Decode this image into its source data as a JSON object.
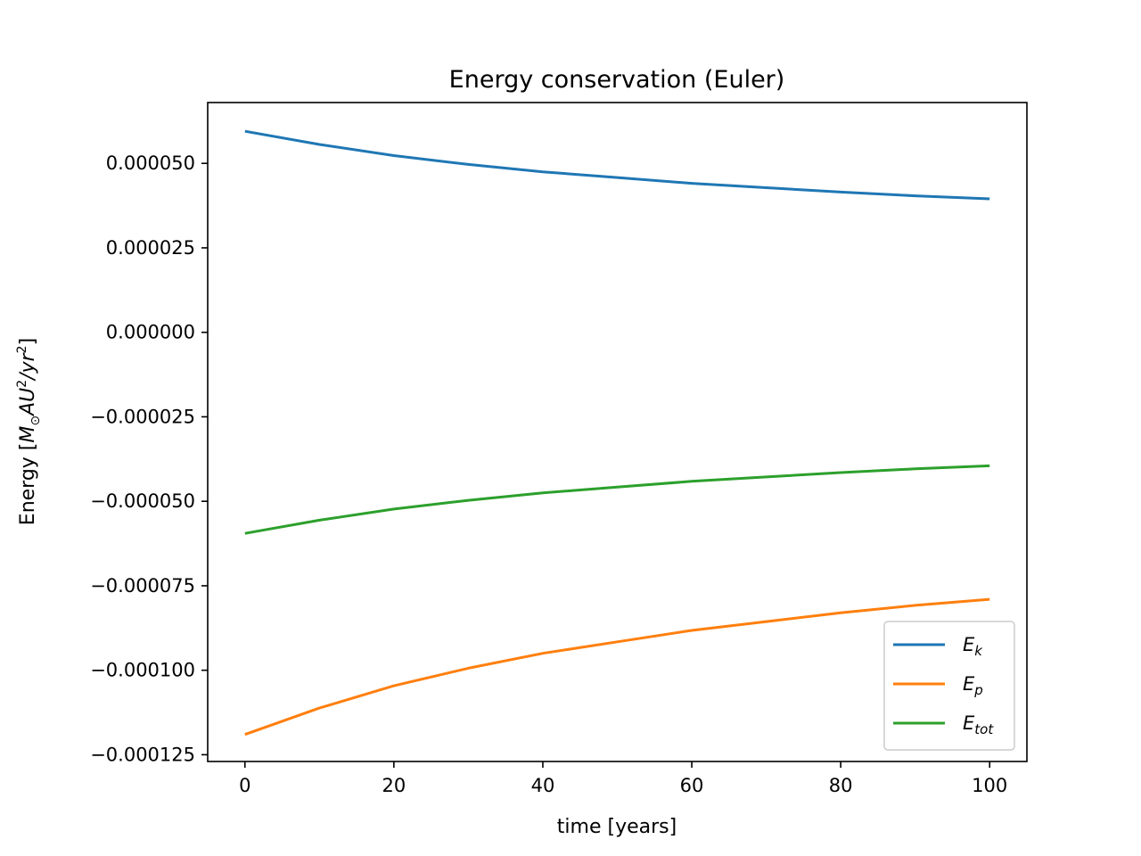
{
  "chart_data": {
    "type": "line",
    "title": "Energy conservation (Euler)",
    "xlabel": "time [years]",
    "ylabel": {
      "prefix": "Energy [",
      "M": "M",
      "sun_symbol": "⊙",
      "AU": "AU",
      "exp1": "2",
      "slash": "/",
      "yr": "yr",
      "exp2": "2",
      "suffix": "]"
    },
    "xlim": [
      -5,
      105
    ],
    "ylim": [
      -0.000127,
      6.8e-05
    ],
    "xticks": [
      0,
      20,
      40,
      60,
      80,
      100
    ],
    "xtick_labels": [
      "0",
      "20",
      "40",
      "60",
      "80",
      "100"
    ],
    "yticks": [
      5e-05,
      2.5e-05,
      0,
      -2.5e-05,
      -5e-05,
      -7.5e-05,
      -0.0001,
      -0.000125
    ],
    "ytick_labels": [
      "0.000050",
      "0.000025",
      "0.000000",
      "−0.000025",
      "−0.000050",
      "−0.000075",
      "−0.000100",
      "−0.000125"
    ],
    "grid": false,
    "legend_position": "lower-right",
    "series": [
      {
        "name": "E_k",
        "legend_main": "E",
        "legend_sub": "k",
        "color": "#1f77b4",
        "x": [
          0,
          10,
          20,
          30,
          40,
          50,
          60,
          70,
          80,
          90,
          100
        ],
        "y": [
          5.95e-05,
          5.56e-05,
          5.23e-05,
          4.97e-05,
          4.75e-05,
          4.58e-05,
          4.41e-05,
          4.28e-05,
          4.15e-05,
          4.04e-05,
          3.95e-05
        ]
      },
      {
        "name": "E_p",
        "legend_main": "E",
        "legend_sub": "p",
        "color": "#ff7f0e",
        "x": [
          0,
          10,
          20,
          30,
          40,
          50,
          60,
          70,
          80,
          90,
          100
        ],
        "y": [
          -0.000119,
          -0.0001112,
          -0.0001046,
          -9.94e-05,
          -9.5e-05,
          -9.16e-05,
          -8.82e-05,
          -8.56e-05,
          -8.3e-05,
          -8.08e-05,
          -7.9e-05
        ]
      },
      {
        "name": "E_tot",
        "legend_main": "E",
        "legend_sub": "tot",
        "color": "#2ca02c",
        "x": [
          0,
          10,
          20,
          30,
          40,
          50,
          60,
          70,
          80,
          90,
          100
        ],
        "y": [
          -5.95e-05,
          -5.56e-05,
          -5.23e-05,
          -4.97e-05,
          -4.75e-05,
          -4.58e-05,
          -4.41e-05,
          -4.28e-05,
          -4.15e-05,
          -4.04e-05,
          -3.95e-05
        ]
      }
    ]
  }
}
